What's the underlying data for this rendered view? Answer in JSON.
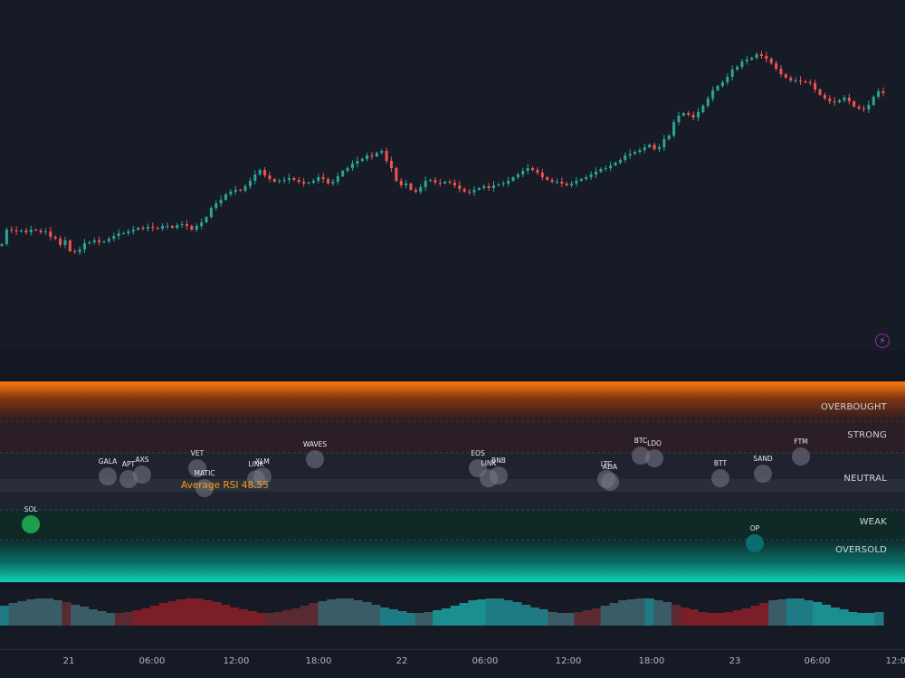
{
  "colors": {
    "up": "#26a69a",
    "down": "#ef5350",
    "background": "#161a25",
    "overbought": "#f57c00",
    "oversold": "#00bfa5",
    "average_rsi": "#f59c1a",
    "weak_dot": "#1e9e4f",
    "oversold_dot": "#0b6e6e"
  },
  "icons": {
    "lightning": "lightning-icon"
  },
  "chart_data": [
    {
      "type": "candlestick",
      "description": "price series (no printed axis values)",
      "close": [
        270,
        254,
        255,
        256,
        255,
        257,
        254,
        255,
        257,
        256,
        262,
        264,
        271,
        266,
        278,
        279,
        276,
        269,
        268,
        266,
        268,
        267,
        264,
        261,
        258,
        258,
        256,
        254,
        252,
        253,
        251,
        252,
        253,
        250,
        250,
        252,
        249,
        248,
        250,
        254,
        250,
        246,
        240,
        230,
        225,
        221,
        215,
        212,
        210,
        211,
        206,
        200,
        193,
        188,
        194,
        198,
        201,
        200,
        199,
        197,
        199,
        201,
        203,
        202,
        200,
        196,
        198,
        203,
        201,
        195,
        189,
        186,
        181,
        178,
        176,
        172,
        173,
        169,
        167,
        178,
        186,
        200,
        205,
        203,
        210,
        212,
        207,
        200,
        199,
        202,
        203,
        201,
        202,
        205,
        209,
        212,
        213,
        210,
        208,
        206,
        208,
        205,
        204,
        203,
        200,
        196,
        193,
        189,
        186,
        188,
        191,
        196,
        199,
        201,
        201,
        203,
        205,
        203,
        200,
        198,
        196,
        193,
        190,
        187,
        186,
        183,
        180,
        177,
        172,
        170,
        168,
        166,
        163,
        160,
        165,
        163,
        154,
        150,
        135,
        128,
        125,
        127,
        130,
        124,
        117,
        109,
        100,
        95,
        91,
        85,
        77,
        74,
        68,
        66,
        64,
        60,
        62,
        65,
        70,
        76,
        82,
        86,
        89,
        89,
        90,
        91,
        92,
        99,
        105,
        109,
        112,
        113,
        111,
        108,
        112,
        118,
        120,
        121,
        116,
        107,
        101,
        103
      ],
      "ohlc_note": "values are chart-relative price levels read from vertical position; the price axis shows no labels"
    },
    {
      "type": "scatter",
      "title": "",
      "x_label": "",
      "y_label": "",
      "zones": [
        "OVERBOUGHT",
        "STRONG",
        "NEUTRAL",
        "WEAK",
        "OVERSOLD"
      ],
      "average_rsi": 48.55,
      "points": [
        {
          "name": "SOL",
          "x": 0.034,
          "y": 29.0,
          "zone": "WEAK"
        },
        {
          "name": "GALA",
          "x": 0.119,
          "y": 47.5,
          "zone": "NEUTRAL"
        },
        {
          "name": "APT",
          "x": 0.142,
          "y": 46.0,
          "zone": "NEUTRAL"
        },
        {
          "name": "AXS",
          "x": 0.157,
          "y": 48.5,
          "zone": "NEUTRAL"
        },
        {
          "name": "VET",
          "x": 0.218,
          "y": 52.0,
          "zone": "NEUTRAL"
        },
        {
          "name": "MATIC",
          "x": 0.226,
          "y": 41.5,
          "zone": "NEUTRAL"
        },
        {
          "name": "LINK",
          "x": 0.283,
          "y": 46.0,
          "zone": "NEUTRAL"
        },
        {
          "name": "XLM",
          "x": 0.29,
          "y": 47.5,
          "zone": "NEUTRAL"
        },
        {
          "name": "WAVES",
          "x": 0.348,
          "y": 56.5,
          "zone": "NEUTRAL"
        },
        {
          "name": "EOS",
          "x": 0.528,
          "y": 52.0,
          "zone": "NEUTRAL"
        },
        {
          "name": "LINK",
          "x": 0.54,
          "y": 46.5,
          "zone": "NEUTRAL"
        },
        {
          "name": "BNB",
          "x": 0.551,
          "y": 48.0,
          "zone": "NEUTRAL"
        },
        {
          "name": "LTC",
          "x": 0.67,
          "y": 46.0,
          "zone": "NEUTRAL"
        },
        {
          "name": "ADA",
          "x": 0.674,
          "y": 45.0,
          "zone": "NEUTRAL"
        },
        {
          "name": "BTC",
          "x": 0.708,
          "y": 58.5,
          "zone": "NEUTRAL"
        },
        {
          "name": "LDO",
          "x": 0.723,
          "y": 57.0,
          "zone": "NEUTRAL"
        },
        {
          "name": "BTT",
          "x": 0.796,
          "y": 46.5,
          "zone": "NEUTRAL"
        },
        {
          "name": "OP",
          "x": 0.834,
          "y": 22.0,
          "zone": "OVERSOLD"
        },
        {
          "name": "SAND",
          "x": 0.843,
          "y": 49.0,
          "zone": "NEUTRAL"
        },
        {
          "name": "FTM",
          "x": 0.885,
          "y": 58.0,
          "zone": "NEUTRAL"
        }
      ]
    },
    {
      "type": "heatmap",
      "description": "RSI heatmap strip",
      "values": [
        0.45,
        0.46,
        0.48,
        0.5,
        0.52,
        0.55,
        0.6,
        0.62,
        0.6,
        0.58,
        0.57,
        0.58,
        0.6,
        0.65,
        0.7,
        0.78,
        0.85,
        0.9,
        0.88,
        0.87,
        0.86,
        0.84,
        0.82,
        0.84,
        0.86,
        0.87,
        0.85,
        0.83,
        0.82,
        0.8,
        0.75,
        0.7,
        0.68,
        0.66,
        0.64,
        0.62,
        0.6,
        0.58,
        0.55,
        0.53,
        0.5,
        0.48,
        0.46,
        0.45,
        0.44,
        0.43,
        0.45,
        0.46,
        0.5,
        0.3,
        0.25,
        0.24,
        0.26,
        0.28,
        0.3,
        0.32,
        0.35,
        0.36,
        0.38,
        0.4,
        0.42,
        0.45,
        0.5,
        0.55,
        0.6,
        0.62,
        0.65,
        0.66,
        0.6,
        0.55,
        0.5,
        0.48,
        0.46,
        0.45,
        0.5,
        0.6,
        0.68,
        0.8,
        0.86,
        0.88,
        0.9,
        0.88,
        0.86,
        0.85,
        0.83,
        0.82,
        0.8,
        0.6,
        0.5,
        0.45,
        0.4,
        0.35,
        0.3,
        0.25,
        0.2,
        0.18,
        0.2,
        0.25,
        0.3,
        0.35
      ]
    }
  ],
  "rsi_pane": {
    "zone_labels": {
      "overbought": "OVERBOUGHT",
      "strong": "STRONG",
      "neutral": "NEUTRAL",
      "weak": "WEAK",
      "oversold": "OVERSOLD"
    },
    "average_rsi_text": "Average RSI 48.55"
  },
  "time_axis": {
    "ticks": [
      "21",
      "06:00",
      "12:00",
      "18:00",
      "22",
      "06:00",
      "12:00",
      "18:00",
      "23",
      "06:00",
      "12:00"
    ]
  }
}
